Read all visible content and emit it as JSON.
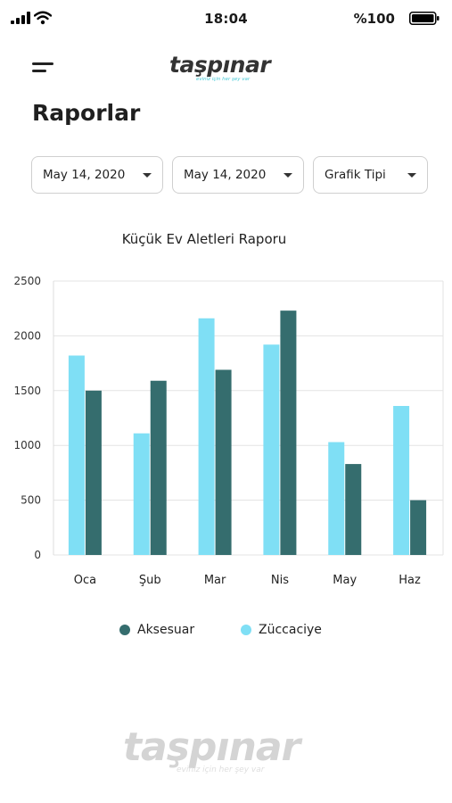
{
  "status_bar": {
    "time": "18:04",
    "battery": "%100"
  },
  "header": {
    "logo": "taşpınar",
    "logo_tagline": "eviniz için her şey var"
  },
  "page": {
    "title": "Raporlar"
  },
  "filters": [
    {
      "label": "May 14, 2020"
    },
    {
      "label": "May 14, 2020"
    },
    {
      "label": "Grafik Tipi"
    }
  ],
  "chart_data": {
    "type": "bar",
    "title": "Küçük Ev Aletleri Raporu",
    "categories": [
      "Oca",
      "Şub",
      "Mar",
      "Nis",
      "May",
      "Haz"
    ],
    "series": [
      {
        "name": "Züccaciye",
        "color": "#7fdff5",
        "values": [
          1820,
          1110,
          2160,
          1920,
          1030,
          1360
        ]
      },
      {
        "name": "Aksesuar",
        "color": "#356d6e",
        "values": [
          1500,
          1590,
          1690,
          2230,
          830,
          500
        ]
      }
    ],
    "ylim": [
      0,
      2500
    ],
    "yticks": [
      0,
      500,
      1000,
      1500,
      2000,
      2500
    ],
    "grid": true,
    "legend_position": "bottom"
  },
  "legend": [
    {
      "label": "Aksesuar",
      "color": "#356d6e"
    },
    {
      "label": "Züccaciye",
      "color": "#7fdff5"
    }
  ],
  "footer": {
    "logo": "taşpınar",
    "tagline": "eviniz için her şey var"
  }
}
